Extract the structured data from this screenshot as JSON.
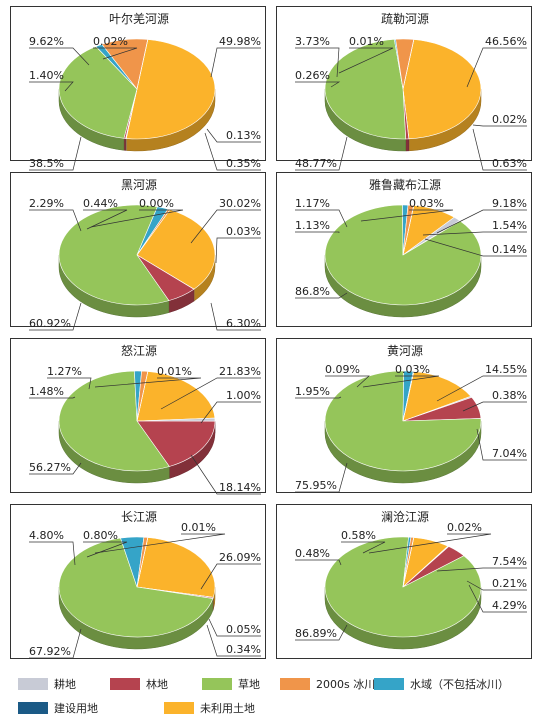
{
  "colors": {
    "耕地": "#c8cbd6",
    "林地": "#b5434f",
    "草地": "#95c55a",
    "2000s冰川": "#f0954a",
    "水域（不包括冰川）": "#35a4c8",
    "建设用地": "#1b5a86",
    "未利用土地": "#fbb32b"
  },
  "legend": [
    {
      "key": "耕地",
      "label": "耕地"
    },
    {
      "key": "林地",
      "label": "林地"
    },
    {
      "key": "草地",
      "label": "草地"
    },
    {
      "key": "2000s冰川",
      "label": "2000s 冰川"
    },
    {
      "key": "水域（不包括冰川）",
      "label": "水域（不包括冰川）"
    },
    {
      "key": "建设用地",
      "label": "建设用地"
    },
    {
      "key": "未利用土地",
      "label": "未利用土地"
    }
  ],
  "chart_data": [
    {
      "type": "pie",
      "title": "叶尔羌河源",
      "slices": [
        {
          "cat": "耕地",
          "value": 0.13,
          "label": "0.13%"
        },
        {
          "cat": "林地",
          "value": 0.35,
          "label": "0.35%"
        },
        {
          "cat": "草地",
          "value": 38.5,
          "label": "38.5%"
        },
        {
          "cat": "水域（不包括冰川）",
          "value": 1.4,
          "label": "1.40%"
        },
        {
          "cat": "2000s冰川",
          "value": 9.62,
          "label": "9.62%"
        },
        {
          "cat": "建设用地",
          "value": 0.02,
          "label": "0.02%"
        },
        {
          "cat": "未利用土地",
          "value": 49.98,
          "label": "49.98%"
        }
      ]
    },
    {
      "type": "pie",
      "title": "疏勒河源",
      "slices": [
        {
          "cat": "耕地",
          "value": 0.02,
          "label": "0.02%"
        },
        {
          "cat": "林地",
          "value": 0.63,
          "label": "0.63%"
        },
        {
          "cat": "草地",
          "value": 48.77,
          "label": "48.77%"
        },
        {
          "cat": "水域（不包括冰川）",
          "value": 0.26,
          "label": "0.26%"
        },
        {
          "cat": "2000s冰川",
          "value": 3.73,
          "label": "3.73%"
        },
        {
          "cat": "建设用地",
          "value": 0.01,
          "label": "0.01%"
        },
        {
          "cat": "未利用土地",
          "value": 46.56,
          "label": "46.56%"
        }
      ]
    },
    {
      "type": "pie",
      "title": "黑河源",
      "slices": [
        {
          "cat": "耕地",
          "value": 0.03,
          "label": "0.03%"
        },
        {
          "cat": "林地",
          "value": 6.3,
          "label": "6.30%"
        },
        {
          "cat": "草地",
          "value": 60.92,
          "label": "60.92%"
        },
        {
          "cat": "水域（不包括冰川）",
          "value": 2.29,
          "label": "2.29%"
        },
        {
          "cat": "2000s冰川",
          "value": 0.44,
          "label": "0.44%"
        },
        {
          "cat": "建设用地",
          "value": 0.0,
          "label": "0.00%"
        },
        {
          "cat": "未利用土地",
          "value": 30.02,
          "label": "30.02%"
        }
      ]
    },
    {
      "type": "pie",
      "title": "雅鲁藏布江源",
      "slices": [
        {
          "cat": "耕地",
          "value": 1.54,
          "label": "1.54%"
        },
        {
          "cat": "林地",
          "value": 0.14,
          "label": "0.14%"
        },
        {
          "cat": "草地",
          "value": 86.8,
          "label": "86.8%"
        },
        {
          "cat": "水域（不包括冰川）",
          "value": 1.13,
          "label": "1.13%"
        },
        {
          "cat": "2000s冰川",
          "value": 1.17,
          "label": "1.17%"
        },
        {
          "cat": "建设用地",
          "value": 0.03,
          "label": "0.03%"
        },
        {
          "cat": "未利用土地",
          "value": 9.18,
          "label": "9.18%"
        }
      ]
    },
    {
      "type": "pie",
      "title": "怒江源",
      "slices": [
        {
          "cat": "耕地",
          "value": 1.0,
          "label": "1.00%"
        },
        {
          "cat": "林地",
          "value": 18.14,
          "label": "18.14%"
        },
        {
          "cat": "草地",
          "value": 56.27,
          "label": "56.27%"
        },
        {
          "cat": "水域（不包括冰川）",
          "value": 1.48,
          "label": "1.48%"
        },
        {
          "cat": "2000s冰川",
          "value": 1.27,
          "label": "1.27%"
        },
        {
          "cat": "建设用地",
          "value": 0.01,
          "label": "0.01%"
        },
        {
          "cat": "未利用土地",
          "value": 21.83,
          "label": "21.83%"
        }
      ]
    },
    {
      "type": "pie",
      "title": "黄河源",
      "slices": [
        {
          "cat": "耕地",
          "value": 0.38,
          "label": "0.38%"
        },
        {
          "cat": "林地",
          "value": 7.04,
          "label": "7.04%"
        },
        {
          "cat": "草地",
          "value": 75.95,
          "label": "75.95%"
        },
        {
          "cat": "水域（不包括冰川）",
          "value": 1.95,
          "label": "1.95%"
        },
        {
          "cat": "2000s冰川",
          "value": 0.09,
          "label": "0.09%"
        },
        {
          "cat": "建设用地",
          "value": 0.03,
          "label": "0.03%"
        },
        {
          "cat": "未利用土地",
          "value": 14.55,
          "label": "14.55%"
        }
      ]
    },
    {
      "type": "pie",
      "title": "长江源",
      "slices": [
        {
          "cat": "耕地",
          "value": 0.05,
          "label": "0.05%"
        },
        {
          "cat": "林地",
          "value": 0.34,
          "label": "0.34%"
        },
        {
          "cat": "草地",
          "value": 67.92,
          "label": "67.92%"
        },
        {
          "cat": "水域（不包括冰川）",
          "value": 4.8,
          "label": "4.80%"
        },
        {
          "cat": "2000s冰川",
          "value": 0.8,
          "label": "0.80%"
        },
        {
          "cat": "建设用地",
          "value": 0.01,
          "label": "0.01%"
        },
        {
          "cat": "未利用土地",
          "value": 26.09,
          "label": "26.09%"
        }
      ]
    },
    {
      "type": "pie",
      "title": "澜沧江源",
      "slices": [
        {
          "cat": "耕地",
          "value": 0.21,
          "label": "0.21%"
        },
        {
          "cat": "林地",
          "value": 4.29,
          "label": "4.29%"
        },
        {
          "cat": "草地",
          "value": 86.89,
          "label": "86.89%"
        },
        {
          "cat": "水域（不包括冰川）",
          "value": 0.48,
          "label": "0.48%"
        },
        {
          "cat": "2000s冰川",
          "value": 0.58,
          "label": "0.58%"
        },
        {
          "cat": "建设用地",
          "value": 0.02,
          "label": "0.02%"
        },
        {
          "cat": "未利用土地",
          "value": 7.54,
          "label": "7.54%"
        }
      ]
    }
  ]
}
